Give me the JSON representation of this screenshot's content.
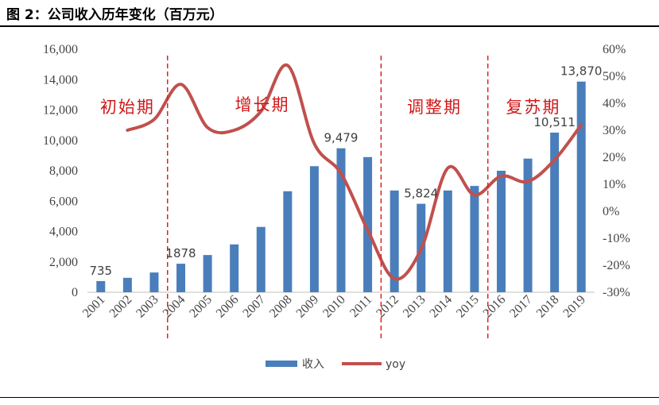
{
  "title": "图 2：公司收入历年变化（百万元）",
  "chart_data": {
    "type": "bar",
    "categories": [
      "2001",
      "2002",
      "2003",
      "2004",
      "2005",
      "2006",
      "2007",
      "2008",
      "2009",
      "2010",
      "2011",
      "2012",
      "2013",
      "2014",
      "2015",
      "2016",
      "2017",
      "2018",
      "2019"
    ],
    "series": [
      {
        "name": "收入",
        "type": "bar",
        "axis": "left",
        "color": "#4a7ebb",
        "values": [
          735,
          950,
          1300,
          1878,
          2450,
          3150,
          4300,
          6650,
          8300,
          9479,
          8900,
          6700,
          5824,
          6700,
          7000,
          8000,
          8800,
          10511,
          13870
        ]
      },
      {
        "name": "yoy",
        "type": "line",
        "axis": "right",
        "color": "#c0504d",
        "smooth": true,
        "values": [
          null,
          30,
          34,
          47,
          31,
          30,
          37,
          54,
          25,
          14,
          -7,
          -25,
          -14,
          16,
          6,
          13,
          11,
          19,
          32
        ]
      }
    ],
    "y_left": {
      "min": 0,
      "max": 16000,
      "step": 2000,
      "ticks": [
        "0",
        "2,000",
        "4,000",
        "6,000",
        "8,000",
        "10,000",
        "12,000",
        "14,000",
        "16,000"
      ]
    },
    "y_right": {
      "min": -30,
      "max": 60,
      "step": 10,
      "ticks": [
        "-30%",
        "-20%",
        "-10%",
        "0%",
        "10%",
        "20%",
        "30%",
        "40%",
        "50%",
        "60%"
      ]
    },
    "data_labels": [
      {
        "index": 0,
        "text": "735"
      },
      {
        "index": 3,
        "text": "1878"
      },
      {
        "index": 9,
        "text": "9,479"
      },
      {
        "index": 12,
        "text": "5,824"
      },
      {
        "index": 17,
        "text": "10,511"
      },
      {
        "index": 18,
        "text": "13,870"
      }
    ],
    "phases": [
      {
        "label": "初始期"
      },
      {
        "label": "增长期"
      },
      {
        "label": "调整期"
      },
      {
        "label": "复苏期"
      }
    ],
    "dividers_after_index": [
      2,
      10,
      14
    ],
    "grid": false,
    "legend": {
      "position": "bottom",
      "items": [
        "收入",
        "yoy"
      ]
    }
  }
}
